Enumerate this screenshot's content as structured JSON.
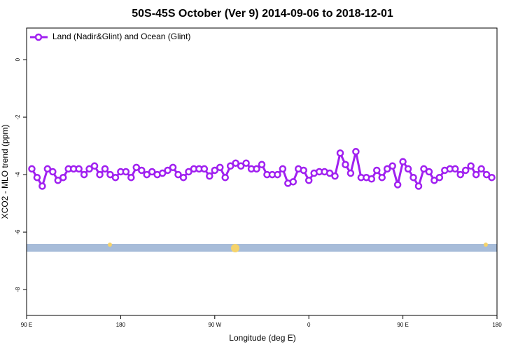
{
  "chart_data": {
    "type": "line",
    "title": "50S-45S October (Ver 9)   2014-09-06 to 2018-12-01",
    "x_label": "Longitude (deg E)",
    "y_label": "XCO2 - MLO trend (ppm)",
    "xlim": [
      90,
      540
    ],
    "xticks": [
      {
        "value": 90,
        "label": "90 E"
      },
      {
        "value": 180,
        "label": "180"
      },
      {
        "value": 270,
        "label": "90 W"
      },
      {
        "value": 360,
        "label": "0"
      },
      {
        "value": 450,
        "label": "90 E"
      },
      {
        "value": 540,
        "label": "180"
      }
    ],
    "ylim": [
      -8.9,
      1.1
    ],
    "yticks": [
      0,
      -2,
      -4,
      -6,
      -8
    ],
    "legend": "top-left",
    "series": [
      {
        "name": "Land (Nadir&Glint) and Ocean (Glint)",
        "color": "#a020f0",
        "x": [
          95,
          100,
          105,
          110,
          115,
          120,
          125,
          130,
          135,
          140,
          145,
          150,
          155,
          160,
          165,
          170,
          175,
          180,
          185,
          190,
          195,
          200,
          205,
          210,
          215,
          220,
          225,
          230,
          235,
          240,
          245,
          250,
          255,
          260,
          265,
          270,
          275,
          280,
          285,
          290,
          295,
          300,
          305,
          310,
          315,
          320,
          325,
          330,
          335,
          340,
          345,
          350,
          355,
          360,
          365,
          370,
          375,
          380,
          385,
          390,
          395,
          400,
          405,
          410,
          415,
          420,
          425,
          430,
          435,
          440,
          445,
          450,
          455,
          460,
          465,
          470,
          475,
          480,
          485,
          490,
          495,
          500,
          505,
          510,
          515,
          520,
          525,
          530,
          535
        ],
        "values": [
          -3.8,
          -4.1,
          -4.4,
          -3.8,
          -3.9,
          -4.2,
          -4.1,
          -3.8,
          -3.8,
          -3.8,
          -4.0,
          -3.8,
          -3.7,
          -4.0,
          -3.8,
          -4.0,
          -4.1,
          -3.9,
          -3.9,
          -4.1,
          -3.75,
          -3.85,
          -4.0,
          -3.9,
          -4.0,
          -3.95,
          -3.85,
          -3.75,
          -4.0,
          -4.1,
          -3.9,
          -3.8,
          -3.8,
          -3.8,
          -4.05,
          -3.85,
          -3.75,
          -4.1,
          -3.7,
          -3.6,
          -3.7,
          -3.6,
          -3.8,
          -3.8,
          -3.65,
          -4.0,
          -4.0,
          -4.0,
          -3.8,
          -4.3,
          -4.25,
          -3.8,
          -3.85,
          -4.2,
          -3.95,
          -3.9,
          -3.9,
          -3.95,
          -4.05,
          -3.25,
          -3.65,
          -3.95,
          -3.2,
          -4.1,
          -4.1,
          -4.15,
          -3.85,
          -4.1,
          -3.8,
          -3.7,
          -4.35,
          -3.55,
          -3.8,
          -4.1,
          -4.4,
          -3.8,
          -3.9,
          -4.2,
          -4.1,
          -3.85,
          -3.8,
          -3.8,
          -4.0,
          -3.85,
          -3.7,
          -4.0,
          -3.8,
          -4.0,
          -4.1
        ]
      }
    ]
  }
}
